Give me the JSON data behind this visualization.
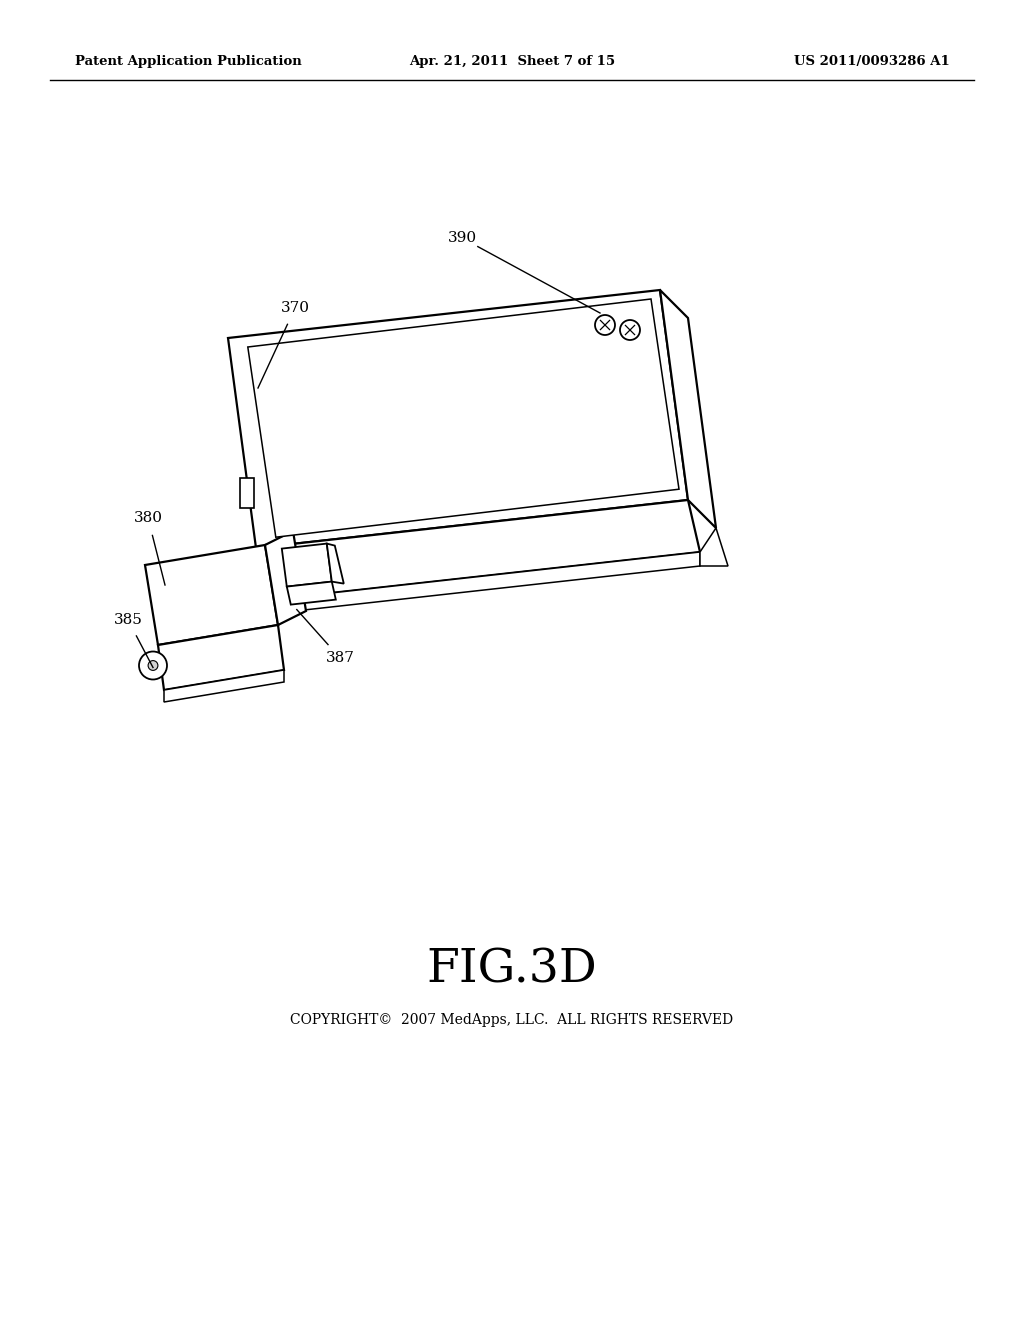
{
  "bg_color": "#ffffff",
  "header_left": "Patent Application Publication",
  "header_center": "Apr. 21, 2011  Sheet 7 of 15",
  "header_right": "US 2011/0093286 A1",
  "fig_label": "FIG.3D",
  "copyright": "COPYRIGHT©  2007 MedApps, LLC.  ALL RIGHTS RESERVED",
  "line_color": "#000000",
  "lw_main": 1.6,
  "lw_inner": 1.1,
  "label_fs": 11
}
